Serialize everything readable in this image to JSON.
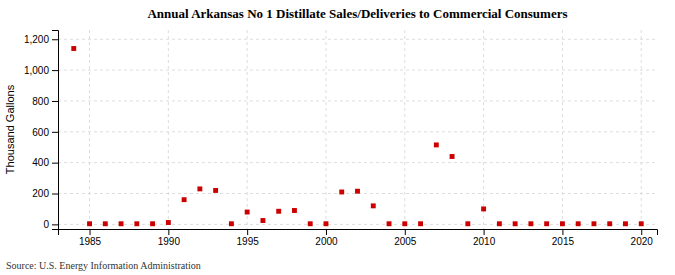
{
  "chart_data": {
    "type": "scatter",
    "title": "Annual Arkansas No 1 Distillate Sales/Deliveries to Commercial Consumers",
    "y_label": "Thousand Gallons",
    "annotations": [
      "Source: U.S. Energy Information Administration"
    ],
    "color": "#cc0000",
    "marker": "square",
    "grid": true,
    "x": [
      1984,
      1985,
      1986,
      1987,
      1988,
      1989,
      1990,
      1991,
      1992,
      1993,
      1994,
      1995,
      1996,
      1997,
      1998,
      1999,
      2000,
      2001,
      2002,
      2003,
      2004,
      2005,
      2006,
      2007,
      2008,
      2009,
      2010,
      2011,
      2012,
      2013,
      2014,
      2015,
      2016,
      2017,
      2018,
      2019,
      2020
    ],
    "values": [
      1140,
      4,
      4,
      4,
      4,
      4,
      12,
      160,
      230,
      220,
      4,
      80,
      25,
      85,
      90,
      4,
      4,
      210,
      215,
      120,
      4,
      4,
      4,
      515,
      440,
      4,
      100,
      4,
      4,
      4,
      4,
      4,
      4,
      4,
      4,
      4,
      4
    ],
    "xlim": [
      1983,
      2021
    ],
    "ylim": [
      -30,
      1260
    ],
    "xticks": [
      1985,
      1990,
      1995,
      2000,
      2005,
      2010,
      2015,
      2020
    ],
    "yticks": [
      0,
      200,
      400,
      600,
      800,
      {
        "value": 1000,
        "label": "1,000"
      },
      {
        "value": 1200,
        "label": "1,200"
      }
    ]
  }
}
